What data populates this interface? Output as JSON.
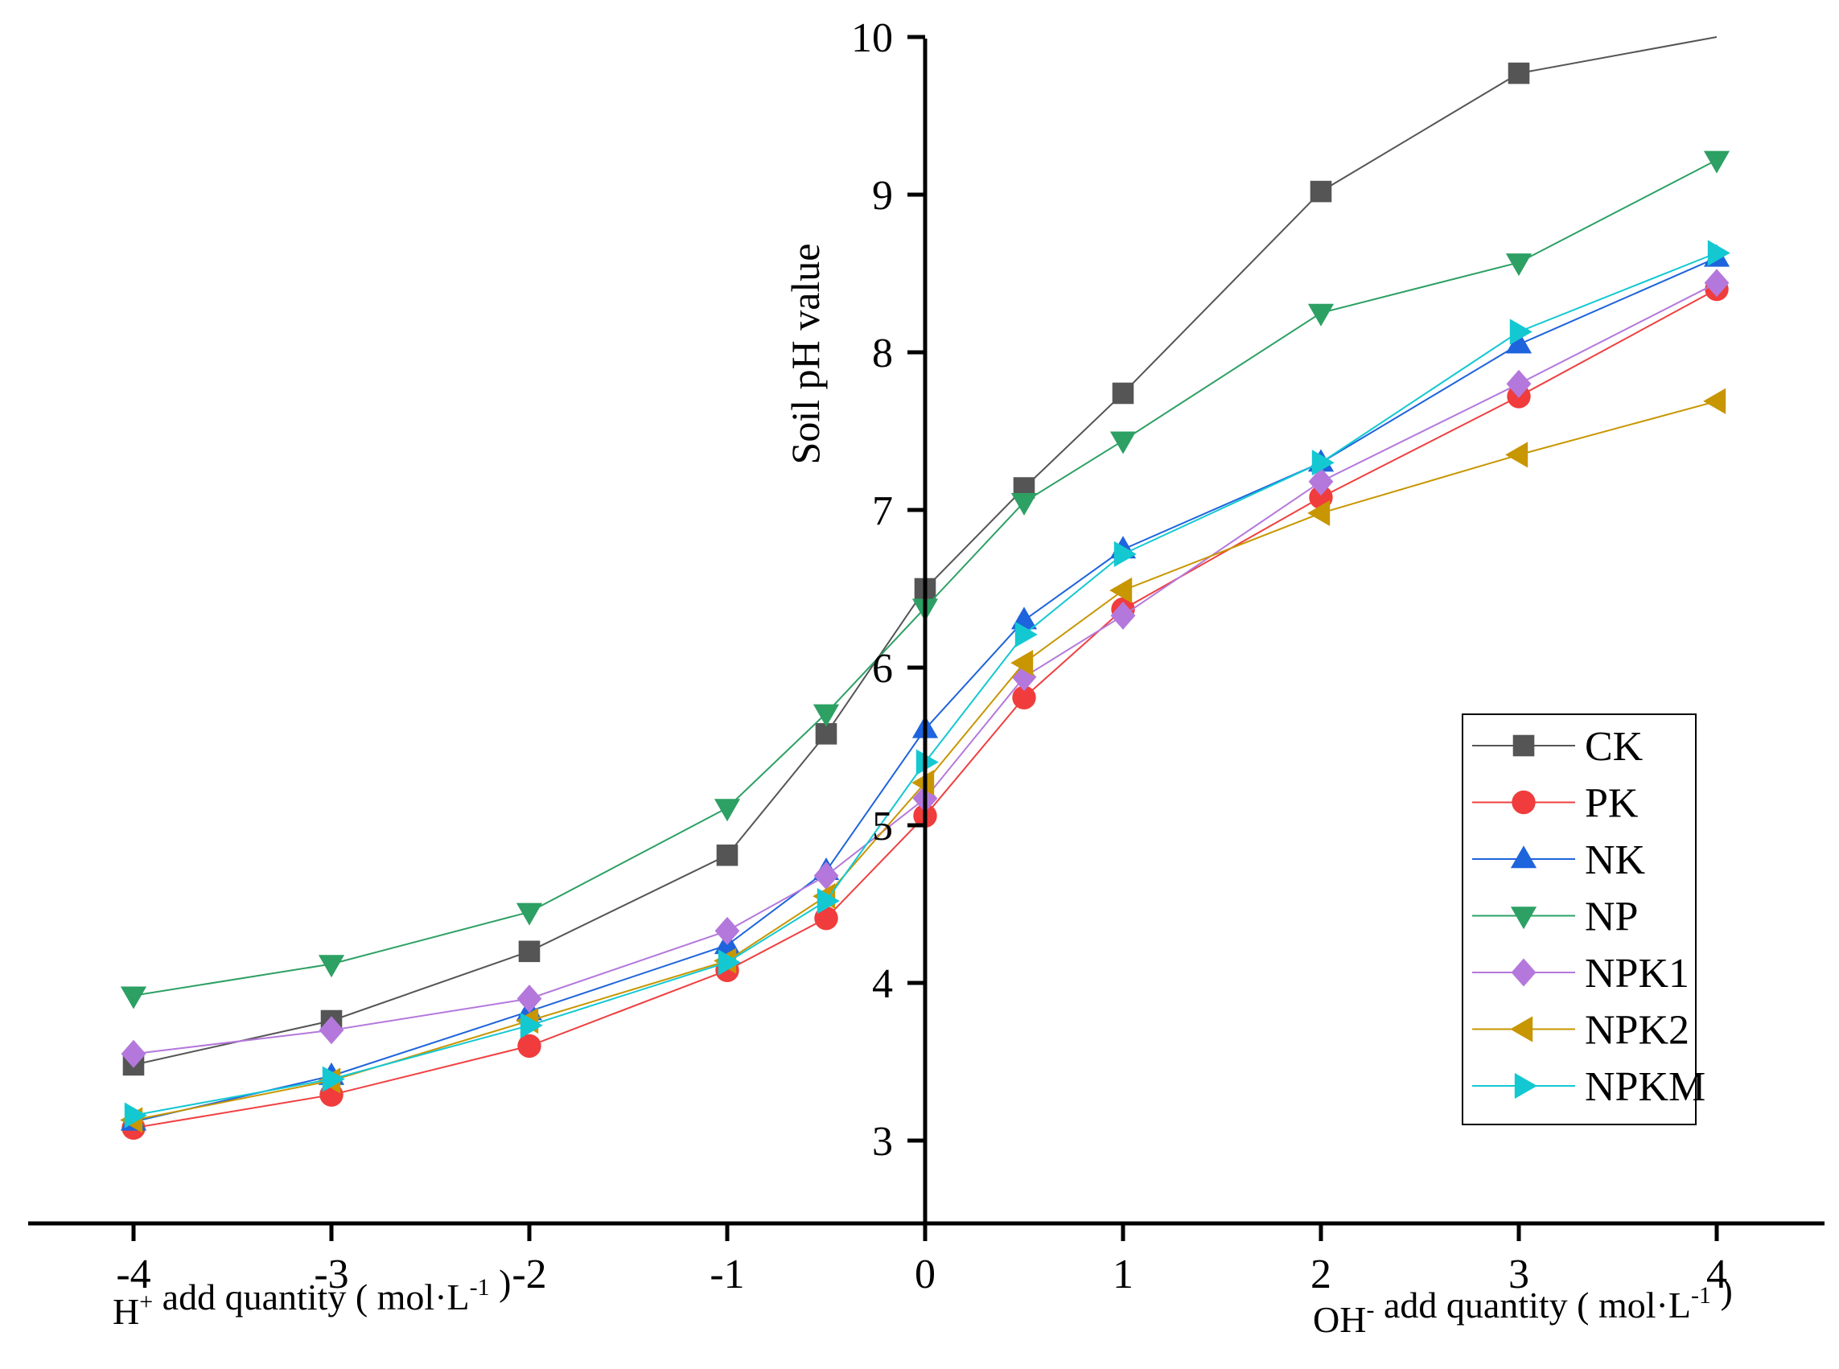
{
  "chart_data": {
    "type": "line",
    "ylabel": "Soil pH value",
    "xlabel_left": {
      "base": "H",
      "sup": "+",
      "text": " add quantity ( mol·L",
      "exp": "-1",
      "close": " )"
    },
    "xlabel_right": {
      "base": "OH",
      "sup": "-",
      "text": " add quantity ( mol·L",
      "exp": "-1",
      "close": " )"
    },
    "x_ticks": [
      -4,
      -3,
      -2,
      -1,
      0,
      1,
      2,
      3,
      4
    ],
    "y_ticks": [
      3,
      4,
      5,
      6,
      7,
      8,
      9,
      10
    ],
    "xlim": [
      -4.6,
      4.5
    ],
    "ylim": [
      2.5,
      10
    ],
    "grid": false,
    "legend_position": "bottom-right",
    "x": [
      -4,
      -3,
      -2,
      -1,
      -0.5,
      0,
      0.5,
      1,
      2,
      3,
      4
    ],
    "series": [
      {
        "name": "CK",
        "marker": "square",
        "color": "#555555",
        "line_color": "#555555",
        "values": [
          3.48,
          3.76,
          4.2,
          4.81,
          5.58,
          6.5,
          7.14,
          7.74,
          9.02,
          9.77,
          10.1
        ]
      },
      {
        "name": "PK",
        "marker": "circle",
        "color": "#f03c3c",
        "line_color": "#f04040",
        "values": [
          3.08,
          3.29,
          3.6,
          4.08,
          4.41,
          5.06,
          5.81,
          6.37,
          7.08,
          7.72,
          8.4
        ]
      },
      {
        "name": "NK",
        "marker": "triangle-up",
        "color": "#1e64dc",
        "line_color": "#1e64dc",
        "values": [
          3.12,
          3.41,
          3.82,
          4.24,
          4.71,
          5.61,
          6.3,
          6.75,
          7.3,
          8.05,
          8.6
        ]
      },
      {
        "name": "NP",
        "marker": "triangle-down",
        "color": "#2da064",
        "line_color": "#2da064",
        "values": [
          3.92,
          4.12,
          4.45,
          5.11,
          5.71,
          6.38,
          7.05,
          7.44,
          8.25,
          8.57,
          9.22
        ]
      },
      {
        "name": "NPK1",
        "marker": "diamond",
        "color": "#b478dc",
        "line_color": "#b478dc",
        "values": [
          3.55,
          3.7,
          3.9,
          4.33,
          4.68,
          5.17,
          5.94,
          6.33,
          7.18,
          7.8,
          8.44
        ]
      },
      {
        "name": "NPK2",
        "marker": "triangle-left",
        "color": "#c89600",
        "line_color": "#c89600",
        "values": [
          3.13,
          3.38,
          3.76,
          4.14,
          4.55,
          5.27,
          6.03,
          6.49,
          6.98,
          7.35,
          7.69
        ]
      },
      {
        "name": "NPKM",
        "marker": "triangle-right",
        "color": "#14c8d2",
        "line_color": "#14c8d2",
        "values": [
          3.16,
          3.39,
          3.73,
          4.13,
          4.52,
          5.4,
          6.21,
          6.72,
          7.3,
          8.13,
          8.63
        ]
      }
    ]
  }
}
